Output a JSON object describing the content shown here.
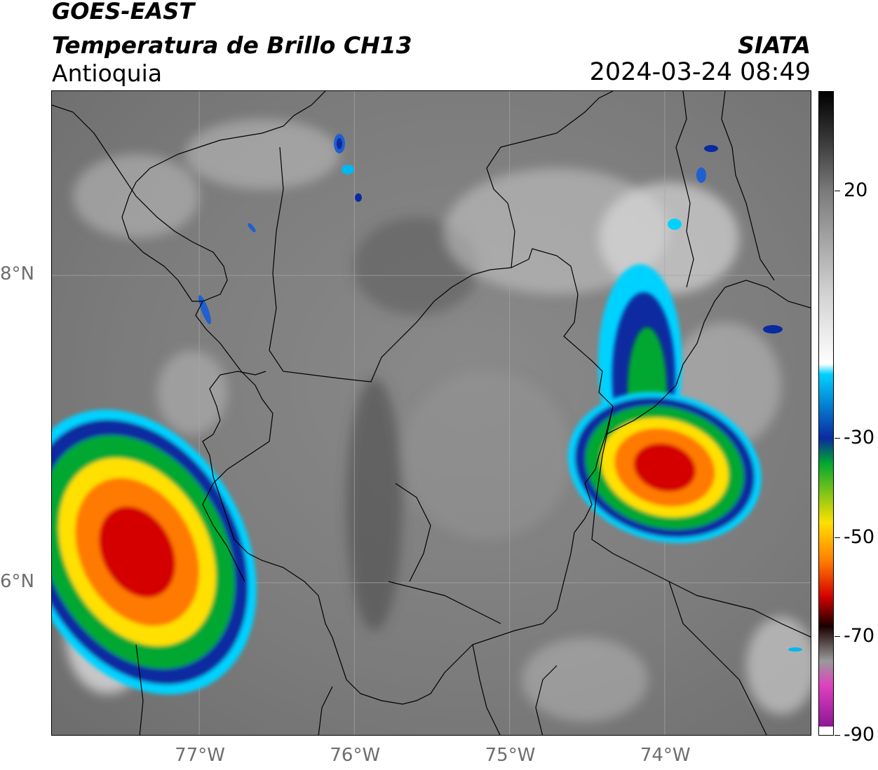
{
  "header": {
    "satellite": "GOES-EAST",
    "product": "Temperatura de Brillo CH13",
    "region": "Antioquia",
    "agency": "SIATA",
    "datetime": "2024-03-24 08:49"
  },
  "map": {
    "lat_ticks": [
      {
        "label": "8°N",
        "lat": 8
      },
      {
        "label": "6°N",
        "lat": 6
      }
    ],
    "lon_ticks": [
      {
        "label": "77°W",
        "lon": -77
      },
      {
        "label": "76°W",
        "lon": -76
      },
      {
        "label": "75°W",
        "lon": -75
      },
      {
        "label": "74°W",
        "lon": -74
      }
    ],
    "extent": {
      "lon_min": -77.95,
      "lon_max": -73.05,
      "lat_min": 5.0,
      "lat_max": 9.2
    },
    "storm_cells": [
      {
        "name": "west-cell",
        "center_lon": -77.4,
        "center_lat": 6.2
      },
      {
        "name": "east-cell",
        "center_lon": -74.0,
        "center_lat": 6.75
      }
    ]
  },
  "colorbar": {
    "ticks": [
      {
        "label": "20",
        "value": 20
      },
      {
        "label": "-30",
        "value": -30
      },
      {
        "label": "-50",
        "value": -50
      },
      {
        "label": "-70",
        "value": -70
      },
      {
        "label": "-90",
        "value": -90
      }
    ],
    "range": [
      -90,
      40
    ],
    "colors": {
      "warm": "#000000",
      "mid": "#cfcfcf",
      "white": "#ffffff",
      "cyan": "#00d2ff",
      "blue": "#0a2aa0",
      "green": "#00a830",
      "yellow": "#ffe000",
      "orange": "#ff7a00",
      "red": "#d40000",
      "black": "#1a0000",
      "gray": "#9a9a9a",
      "pink": "#e040c0",
      "purple": "#7a0f8a"
    }
  }
}
